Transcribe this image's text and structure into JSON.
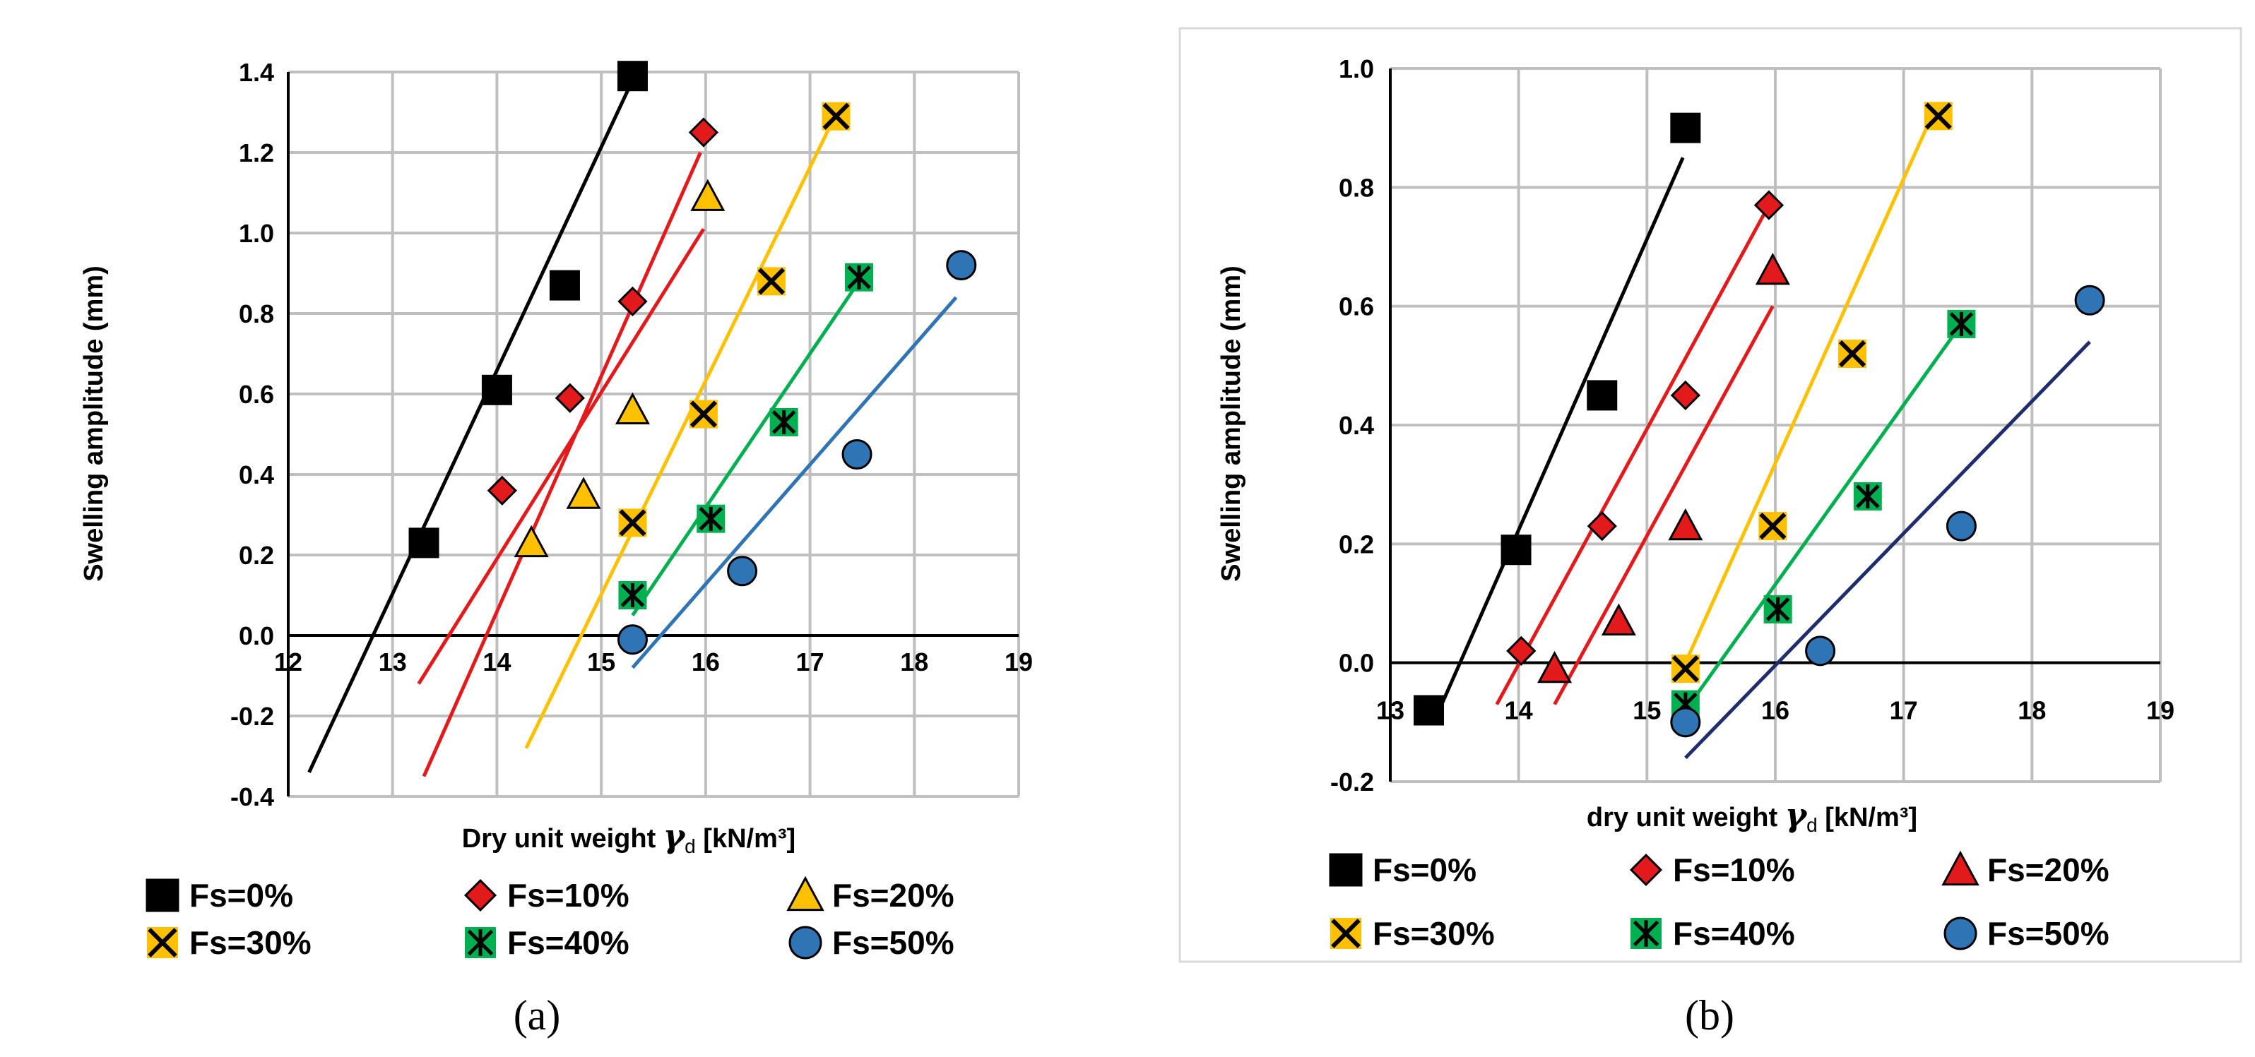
{
  "chart_data": [
    {
      "type": "scatter",
      "panel_label": "(a)",
      "xlabel_prefix": "Dry  unit weight ",
      "xlabel_symbol": "γ",
      "xlabel_subscript": "d",
      "xlabel_suffix": "  [kN/m³]",
      "ylabel": "Swelling amplitude (mm)",
      "xlim": [
        12,
        19
      ],
      "ylim": [
        -0.4,
        1.4
      ],
      "xticks": [
        "12",
        "13",
        "14",
        "15",
        "16",
        "17",
        "18",
        "19"
      ],
      "yticks": [
        "-0.4",
        "-0.2",
        "0.0",
        "0.2",
        "0.4",
        "0.6",
        "0.8",
        "1.0",
        "1.2",
        "1.4"
      ],
      "grid": true,
      "legend_position": "bottom",
      "series": [
        {
          "name": "Fs=0%",
          "marker": "square",
          "color": "#000000",
          "x": [
            13.3,
            14.0,
            14.65,
            15.3
          ],
          "y": [
            0.23,
            0.61,
            0.87,
            1.39
          ],
          "fit": [
            [
              12.2,
              -0.34
            ],
            [
              15.3,
              1.38
            ]
          ],
          "fit_color": "#000000"
        },
        {
          "name": "Fs=10%",
          "marker": "diamond",
          "color": "#e31a1c",
          "x": [
            14.05,
            14.7,
            15.3,
            15.98
          ],
          "y": [
            0.36,
            0.59,
            0.83,
            1.25
          ],
          "fit": [
            [
              13.3,
              -0.35
            ],
            [
              15.95,
              1.2
            ]
          ],
          "fit_color": "#e31a1c",
          "fit2": [
            [
              13.25,
              -0.12
            ],
            [
              15.98,
              1.01
            ]
          ],
          "fit2_color": "#e31a1c"
        },
        {
          "name": "Fs=20%",
          "marker": "triangle",
          "color": "#ffc000",
          "x": [
            14.33,
            14.83,
            15.3,
            16.02
          ],
          "y": [
            0.23,
            0.35,
            0.56,
            1.09
          ],
          "fit": [
            [
              13.3,
              -0.35
            ],
            [
              13.3,
              -0.35
            ]
          ],
          "fit_color": "#e31a1c"
        },
        {
          "name": "Fs=30%",
          "marker": "x",
          "color": "#ffc000",
          "x": [
            15.3,
            15.98,
            16.63,
            17.25
          ],
          "y": [
            0.28,
            0.55,
            0.88,
            1.29
          ],
          "fit": [
            [
              14.28,
              -0.28
            ],
            [
              17.22,
              1.28
            ]
          ],
          "fit_color": "#ffc000"
        },
        {
          "name": "Fs=40%",
          "marker": "xsquare",
          "color": "#00b050",
          "x": [
            15.3,
            16.05,
            16.75,
            17.47
          ],
          "y": [
            0.1,
            0.29,
            0.53,
            0.89
          ],
          "fit": [
            [
              15.3,
              0.05
            ],
            [
              17.47,
              0.88
            ]
          ],
          "fit_color": "#00b050"
        },
        {
          "name": "Fs=50%",
          "marker": "circle",
          "color": "#2f75b5",
          "x": [
            15.3,
            16.35,
            17.45,
            18.45
          ],
          "y": [
            -0.01,
            0.16,
            0.45,
            0.92
          ],
          "fit": [
            [
              15.3,
              -0.08
            ],
            [
              18.4,
              0.84
            ]
          ],
          "fit_color": "#2f75b5"
        }
      ]
    },
    {
      "type": "scatter",
      "panel_label": "(b)",
      "xlabel_prefix": "dry unit weight ",
      "xlabel_symbol": "γ",
      "xlabel_subscript": "d",
      "xlabel_suffix": " [kN/m³]",
      "ylabel": "Swelling amplitude (mm)",
      "xlim": [
        13,
        19
      ],
      "ylim": [
        -0.2,
        1.0
      ],
      "xticks": [
        "13",
        "14",
        "15",
        "16",
        "17",
        "18",
        "19"
      ],
      "yticks": [
        "-0.2",
        "0.0",
        "0.2",
        "0.4",
        "0.6",
        "0.8",
        "1.0"
      ],
      "grid": true,
      "legend_position": "bottom",
      "series": [
        {
          "name": "Fs=0%",
          "marker": "square",
          "color": "#000000",
          "x": [
            13.3,
            13.98,
            14.65,
            15.3
          ],
          "y": [
            -0.08,
            0.19,
            0.45,
            0.9
          ],
          "fit": [
            [
              13.38,
              -0.08
            ],
            [
              15.28,
              0.85
            ]
          ],
          "fit_color": "#000000"
        },
        {
          "name": "Fs=10%",
          "marker": "diamond",
          "color": "#e31a1c",
          "x": [
            14.02,
            14.65,
            15.3,
            15.95
          ],
          "y": [
            0.02,
            0.23,
            0.45,
            0.77
          ],
          "fit": [
            [
              13.83,
              -0.07
            ],
            [
              15.95,
              0.77
            ]
          ],
          "fit_color": "#e31a1c"
        },
        {
          "name": "Fs=20%",
          "marker": "triangle",
          "color": "#e31a1c",
          "x": [
            14.28,
            14.78,
            15.3,
            15.98
          ],
          "y": [
            -0.01,
            0.07,
            0.23,
            0.66
          ],
          "fit": [
            [
              14.28,
              -0.07
            ],
            [
              15.98,
              0.6
            ]
          ],
          "fit_color": "#e31a1c"
        },
        {
          "name": "Fs=30%",
          "marker": "x",
          "color": "#ffc000",
          "x": [
            15.3,
            15.98,
            16.6,
            17.27
          ],
          "y": [
            -0.01,
            0.23,
            0.52,
            0.92
          ],
          "fit": [
            [
              15.3,
              0.0
            ],
            [
              17.22,
              0.92
            ]
          ],
          "fit_color": "#ffc000"
        },
        {
          "name": "Fs=40%",
          "marker": "xsquare",
          "color": "#00b050",
          "x": [
            15.3,
            16.02,
            16.72,
            17.45
          ],
          "y": [
            -0.07,
            0.09,
            0.28,
            0.57
          ],
          "fit": [
            [
              15.3,
              -0.08
            ],
            [
              17.45,
              0.57
            ]
          ],
          "fit_color": "#00b050"
        },
        {
          "name": "Fs=50%",
          "marker": "circle",
          "color": "#2f75b5",
          "x": [
            15.3,
            16.35,
            17.45,
            18.45
          ],
          "y": [
            -0.1,
            0.02,
            0.23,
            0.61
          ],
          "fit": [
            [
              15.3,
              -0.16
            ],
            [
              18.45,
              0.54
            ]
          ],
          "fit_color": "#1f2d6d"
        }
      ]
    }
  ]
}
